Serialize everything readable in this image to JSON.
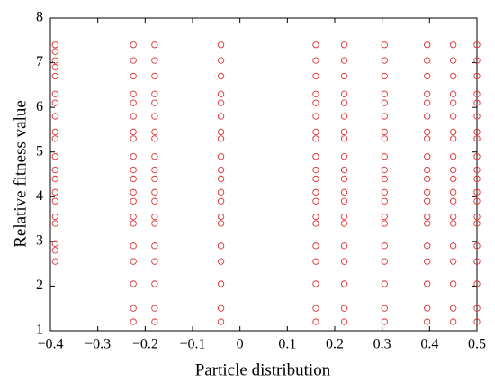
{
  "chart_data": {
    "type": "scatter",
    "xlabel": "Particle distribution",
    "ylabel": "Relative fitness value",
    "xlim": [
      -0.4,
      0.5
    ],
    "ylim": [
      1,
      8
    ],
    "xticks": [
      {
        "value": -0.4,
        "label": "−0.4"
      },
      {
        "value": -0.3,
        "label": "−0.3"
      },
      {
        "value": -0.2,
        "label": "−0.2"
      },
      {
        "value": -0.1,
        "label": "−0.1"
      },
      0,
      0.1,
      0.2,
      0.3,
      0.4,
      0.5
    ],
    "yticks": [
      1,
      2,
      3,
      4,
      5,
      6,
      7,
      8
    ],
    "series": [
      {
        "color": "#e03030",
        "x": [
          -0.39,
          -0.39,
          -0.39,
          -0.39,
          -0.39,
          -0.39,
          -0.39,
          -0.39,
          -0.39,
          -0.39,
          -0.39,
          -0.39,
          -0.39,
          -0.39,
          -0.39,
          -0.39,
          -0.39,
          -0.39,
          -0.39,
          -0.39,
          -0.225,
          -0.225,
          -0.225,
          -0.225,
          -0.225,
          -0.225,
          -0.225,
          -0.225,
          -0.225,
          -0.225,
          -0.225,
          -0.225,
          -0.225,
          -0.225,
          -0.225,
          -0.225,
          -0.225,
          -0.225,
          -0.225,
          -0.225,
          -0.18,
          -0.18,
          -0.18,
          -0.18,
          -0.18,
          -0.18,
          -0.18,
          -0.18,
          -0.18,
          -0.18,
          -0.18,
          -0.18,
          -0.18,
          -0.18,
          -0.18,
          -0.18,
          -0.18,
          -0.18,
          -0.18,
          -0.18,
          -0.04,
          -0.04,
          -0.04,
          -0.04,
          -0.04,
          -0.04,
          -0.04,
          -0.04,
          -0.04,
          -0.04,
          -0.04,
          -0.04,
          -0.04,
          -0.04,
          -0.04,
          -0.04,
          -0.04,
          -0.04,
          -0.04,
          -0.04,
          0.16,
          0.16,
          0.16,
          0.16,
          0.16,
          0.16,
          0.16,
          0.16,
          0.16,
          0.16,
          0.16,
          0.16,
          0.16,
          0.16,
          0.16,
          0.16,
          0.16,
          0.16,
          0.16,
          0.16,
          0.22,
          0.22,
          0.22,
          0.22,
          0.22,
          0.22,
          0.22,
          0.22,
          0.22,
          0.22,
          0.22,
          0.22,
          0.22,
          0.22,
          0.22,
          0.22,
          0.22,
          0.22,
          0.22,
          0.22,
          0.305,
          0.305,
          0.305,
          0.305,
          0.305,
          0.305,
          0.305,
          0.305,
          0.305,
          0.305,
          0.305,
          0.305,
          0.305,
          0.305,
          0.305,
          0.305,
          0.305,
          0.305,
          0.305,
          0.305,
          0.395,
          0.395,
          0.395,
          0.395,
          0.395,
          0.395,
          0.395,
          0.395,
          0.395,
          0.395,
          0.395,
          0.395,
          0.395,
          0.395,
          0.395,
          0.395,
          0.395,
          0.395,
          0.395,
          0.395,
          0.45,
          0.45,
          0.45,
          0.45,
          0.45,
          0.45,
          0.45,
          0.45,
          0.45,
          0.45,
          0.45,
          0.45,
          0.45,
          0.45,
          0.45,
          0.45,
          0.45,
          0.45,
          0.45,
          0.45,
          0.5,
          0.5,
          0.5,
          0.5,
          0.5,
          0.5,
          0.5,
          0.5,
          0.5,
          0.5,
          0.5,
          0.5,
          0.5,
          0.5,
          0.5,
          0.5,
          0.5,
          0.5,
          0.5,
          0.5
        ],
        "values": [
          2.55,
          2.8,
          2.95,
          3.4,
          3.55,
          3.9,
          4.1,
          4.4,
          4.6,
          4.9,
          5.3,
          5.45,
          5.8,
          6.1,
          6.3,
          6.7,
          6.9,
          7.05,
          7.25,
          7.4,
          1.2,
          1.5,
          2.05,
          2.55,
          2.9,
          3.4,
          3.55,
          3.9,
          4.1,
          4.4,
          4.6,
          4.9,
          5.3,
          5.45,
          5.8,
          6.1,
          6.3,
          6.7,
          7.05,
          7.4,
          1.2,
          1.5,
          2.05,
          2.55,
          2.9,
          3.4,
          3.55,
          3.9,
          4.1,
          4.4,
          4.6,
          4.9,
          5.3,
          5.45,
          5.8,
          6.1,
          6.3,
          6.7,
          7.05,
          7.4,
          1.2,
          1.5,
          2.05,
          2.55,
          2.9,
          3.4,
          3.55,
          3.9,
          4.1,
          4.4,
          4.6,
          4.9,
          5.3,
          5.45,
          5.8,
          6.1,
          6.3,
          6.7,
          7.05,
          7.4,
          1.2,
          1.5,
          2.05,
          2.55,
          2.9,
          3.4,
          3.55,
          3.9,
          4.1,
          4.4,
          4.6,
          4.9,
          5.3,
          5.45,
          5.8,
          6.1,
          6.3,
          6.7,
          7.05,
          7.4,
          1.2,
          1.5,
          2.05,
          2.55,
          2.9,
          3.4,
          3.55,
          3.9,
          4.1,
          4.4,
          4.6,
          4.9,
          5.3,
          5.45,
          5.8,
          6.1,
          6.3,
          6.7,
          7.05,
          7.4,
          1.2,
          1.5,
          2.05,
          2.55,
          2.9,
          3.4,
          3.55,
          3.9,
          4.1,
          4.4,
          4.6,
          4.9,
          5.3,
          5.45,
          5.8,
          6.1,
          6.3,
          6.7,
          7.05,
          7.4,
          1.2,
          1.5,
          2.05,
          2.55,
          2.9,
          3.4,
          3.55,
          3.9,
          4.1,
          4.4,
          4.6,
          4.9,
          5.3,
          5.45,
          5.8,
          6.1,
          6.3,
          6.7,
          7.05,
          7.4,
          1.2,
          1.5,
          2.05,
          2.55,
          2.9,
          3.4,
          3.55,
          3.9,
          4.1,
          4.4,
          4.6,
          4.9,
          5.3,
          5.45,
          5.8,
          6.1,
          6.3,
          6.7,
          7.05,
          7.4,
          1.2,
          1.5,
          2.05,
          2.55,
          2.9,
          3.4,
          3.55,
          3.9,
          4.1,
          4.4,
          4.6,
          4.9,
          5.3,
          5.45,
          5.8,
          6.1,
          6.3,
          6.7,
          7.05,
          7.4
        ]
      }
    ]
  }
}
